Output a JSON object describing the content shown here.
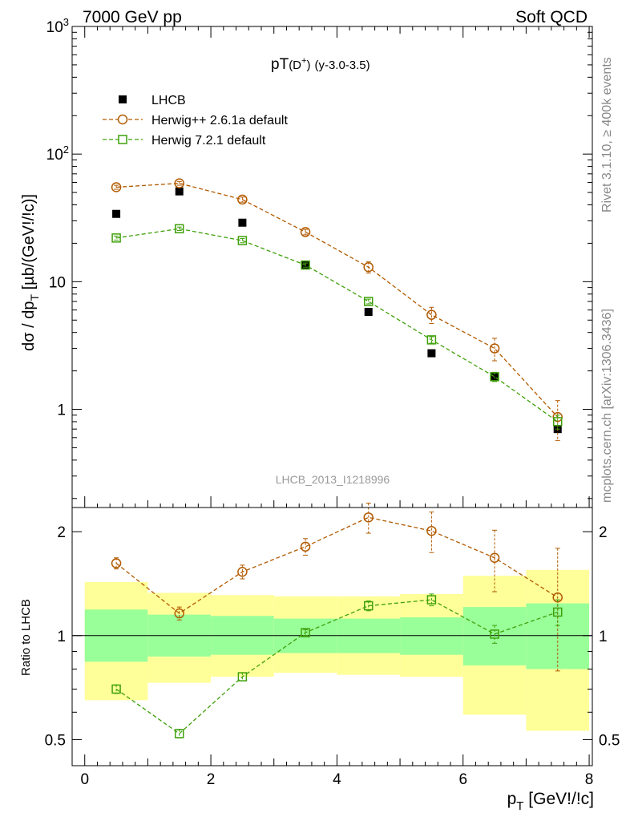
{
  "header": {
    "left": "7000 GeV pp",
    "right": "Soft QCD"
  },
  "side_text": {
    "rivet": "Rivet 3.1.10, ≥ 400k events",
    "mcplots": "mcplots.cern.ch [arXiv:1306.3436]"
  },
  "chart_data": [
    {
      "type": "scatter",
      "panel": "main",
      "title": "pT(D⁺) (y-3.0-3.5)",
      "title_main": "pT",
      "title_paren": "(D",
      "title_sup": "+",
      "title_close": ")",
      "title_sub": "(y-3.0-3.5)",
      "analysis_label": "LHCB_2013_I1218996",
      "xlabel": "pT [GeV!/!c]",
      "ylabel": "dσ / dpT [µb/(GeV!/!c)]",
      "yscale": "log",
      "xlim": [
        -0.2,
        8.05
      ],
      "ylim": [
        0.17,
        1000
      ],
      "x_ticks": [
        "0",
        "2",
        "4",
        "6",
        "8"
      ],
      "y_ticks": [
        "1",
        "10",
        "10²",
        "10³"
      ],
      "legend_position": "top-left",
      "x": [
        0.5,
        1.5,
        2.5,
        3.5,
        4.5,
        5.5,
        6.5,
        7.5
      ],
      "series": [
        {
          "name": "LHCB",
          "color": "#000000",
          "marker": "filled-square",
          "values": [
            34,
            51,
            29,
            13.5,
            5.8,
            2.75,
            1.8,
            0.7
          ],
          "errors": [
            0.8,
            1.0,
            0.6,
            0.3,
            0.15,
            0.08,
            0.08,
            0.05
          ]
        },
        {
          "name": "Herwig++ 2.6.1a default",
          "color": "#b25a00",
          "marker": "open-circle",
          "line": "dashed",
          "values": [
            55,
            59,
            44,
            24.5,
            13,
            5.5,
            3.0,
            0.87
          ],
          "errors": [
            2,
            2,
            2,
            1.2,
            1.3,
            0.8,
            0.6,
            0.3
          ]
        },
        {
          "name": "Herwig 7.2.1 default",
          "color": "#3fa00a",
          "marker": "open-square",
          "line": "dashed",
          "values": [
            22,
            26,
            21,
            13.5,
            7.0,
            3.5,
            1.8,
            0.8
          ],
          "errors": [
            0.8,
            0.8,
            0.8,
            0.5,
            0.3,
            0.2,
            0.15,
            0.1
          ]
        }
      ]
    },
    {
      "type": "scatter",
      "panel": "ratio",
      "ylabel": "Ratio to LHCB",
      "ylim": [
        0.42,
        2.35
      ],
      "y_ticks": [
        "0.5",
        "1",
        "2"
      ],
      "bin_edges": [
        0,
        1,
        2,
        3,
        4,
        5,
        6,
        7,
        8
      ],
      "band_inner": [
        [
          0.84,
          1.19
        ],
        [
          0.87,
          1.15
        ],
        [
          0.88,
          1.14
        ],
        [
          0.89,
          1.12
        ],
        [
          0.89,
          1.12
        ],
        [
          0.88,
          1.13
        ],
        [
          0.82,
          1.21
        ],
        [
          0.8,
          1.24
        ]
      ],
      "band_outer": [
        [
          0.65,
          1.43
        ],
        [
          0.73,
          1.33
        ],
        [
          0.76,
          1.31
        ],
        [
          0.78,
          1.3
        ],
        [
          0.77,
          1.3
        ],
        [
          0.76,
          1.32
        ],
        [
          0.59,
          1.49
        ],
        [
          0.53,
          1.55
        ]
      ],
      "band_inner_color": "#99ff99",
      "band_outer_color": "#ffff99",
      "x": [
        0.5,
        1.5,
        2.5,
        3.5,
        4.5,
        5.5,
        6.5,
        7.5
      ],
      "series": [
        {
          "name": "Herwig++ 2.6.1a default",
          "color": "#b25a00",
          "values": [
            1.62,
            1.16,
            1.53,
            1.81,
            2.2,
            2.01,
            1.68,
            1.29
          ],
          "errors": [
            0.06,
            0.05,
            0.07,
            0.1,
            0.22,
            0.27,
            0.34,
            0.5
          ]
        },
        {
          "name": "Herwig 7.2.1 default",
          "color": "#3fa00a",
          "values": [
            0.7,
            0.52,
            0.76,
            1.02,
            1.22,
            1.27,
            1.01,
            1.17
          ],
          "errors": [
            0.02,
            0.015,
            0.02,
            0.02,
            0.04,
            0.05,
            0.06,
            0.1
          ]
        }
      ]
    }
  ]
}
